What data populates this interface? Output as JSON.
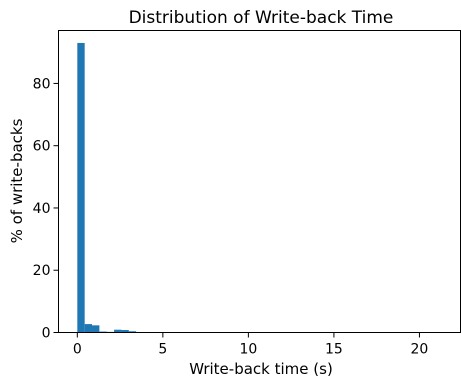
{
  "chart_data": {
    "type": "bar",
    "title": "Distribution of Write-back Time",
    "xlabel": "Write-back time (s)",
    "ylabel": "% of write-backs",
    "xlim": [
      -1.1,
      22.4
    ],
    "ylim": [
      0,
      97
    ],
    "xticks": [
      0,
      5,
      10,
      15,
      20
    ],
    "yticks": [
      0,
      20,
      40,
      60,
      80
    ],
    "bin_width": 0.43,
    "bins": [
      {
        "x0": 0.0,
        "value": 93.0
      },
      {
        "x0": 0.43,
        "value": 2.7
      },
      {
        "x0": 0.86,
        "value": 2.3
      },
      {
        "x0": 1.29,
        "value": 0.3
      },
      {
        "x0": 1.72,
        "value": 0.2
      },
      {
        "x0": 2.15,
        "value": 0.9
      },
      {
        "x0": 2.58,
        "value": 0.8
      },
      {
        "x0": 3.01,
        "value": 0.4
      },
      {
        "x0": 3.44,
        "value": 0.15
      },
      {
        "x0": 3.87,
        "value": 0.1
      },
      {
        "x0": 4.3,
        "value": 0.05
      },
      {
        "x0": 4.73,
        "value": 0.05
      }
    ],
    "bar_color": "#1f77b4",
    "grid": false,
    "legend": "none"
  }
}
